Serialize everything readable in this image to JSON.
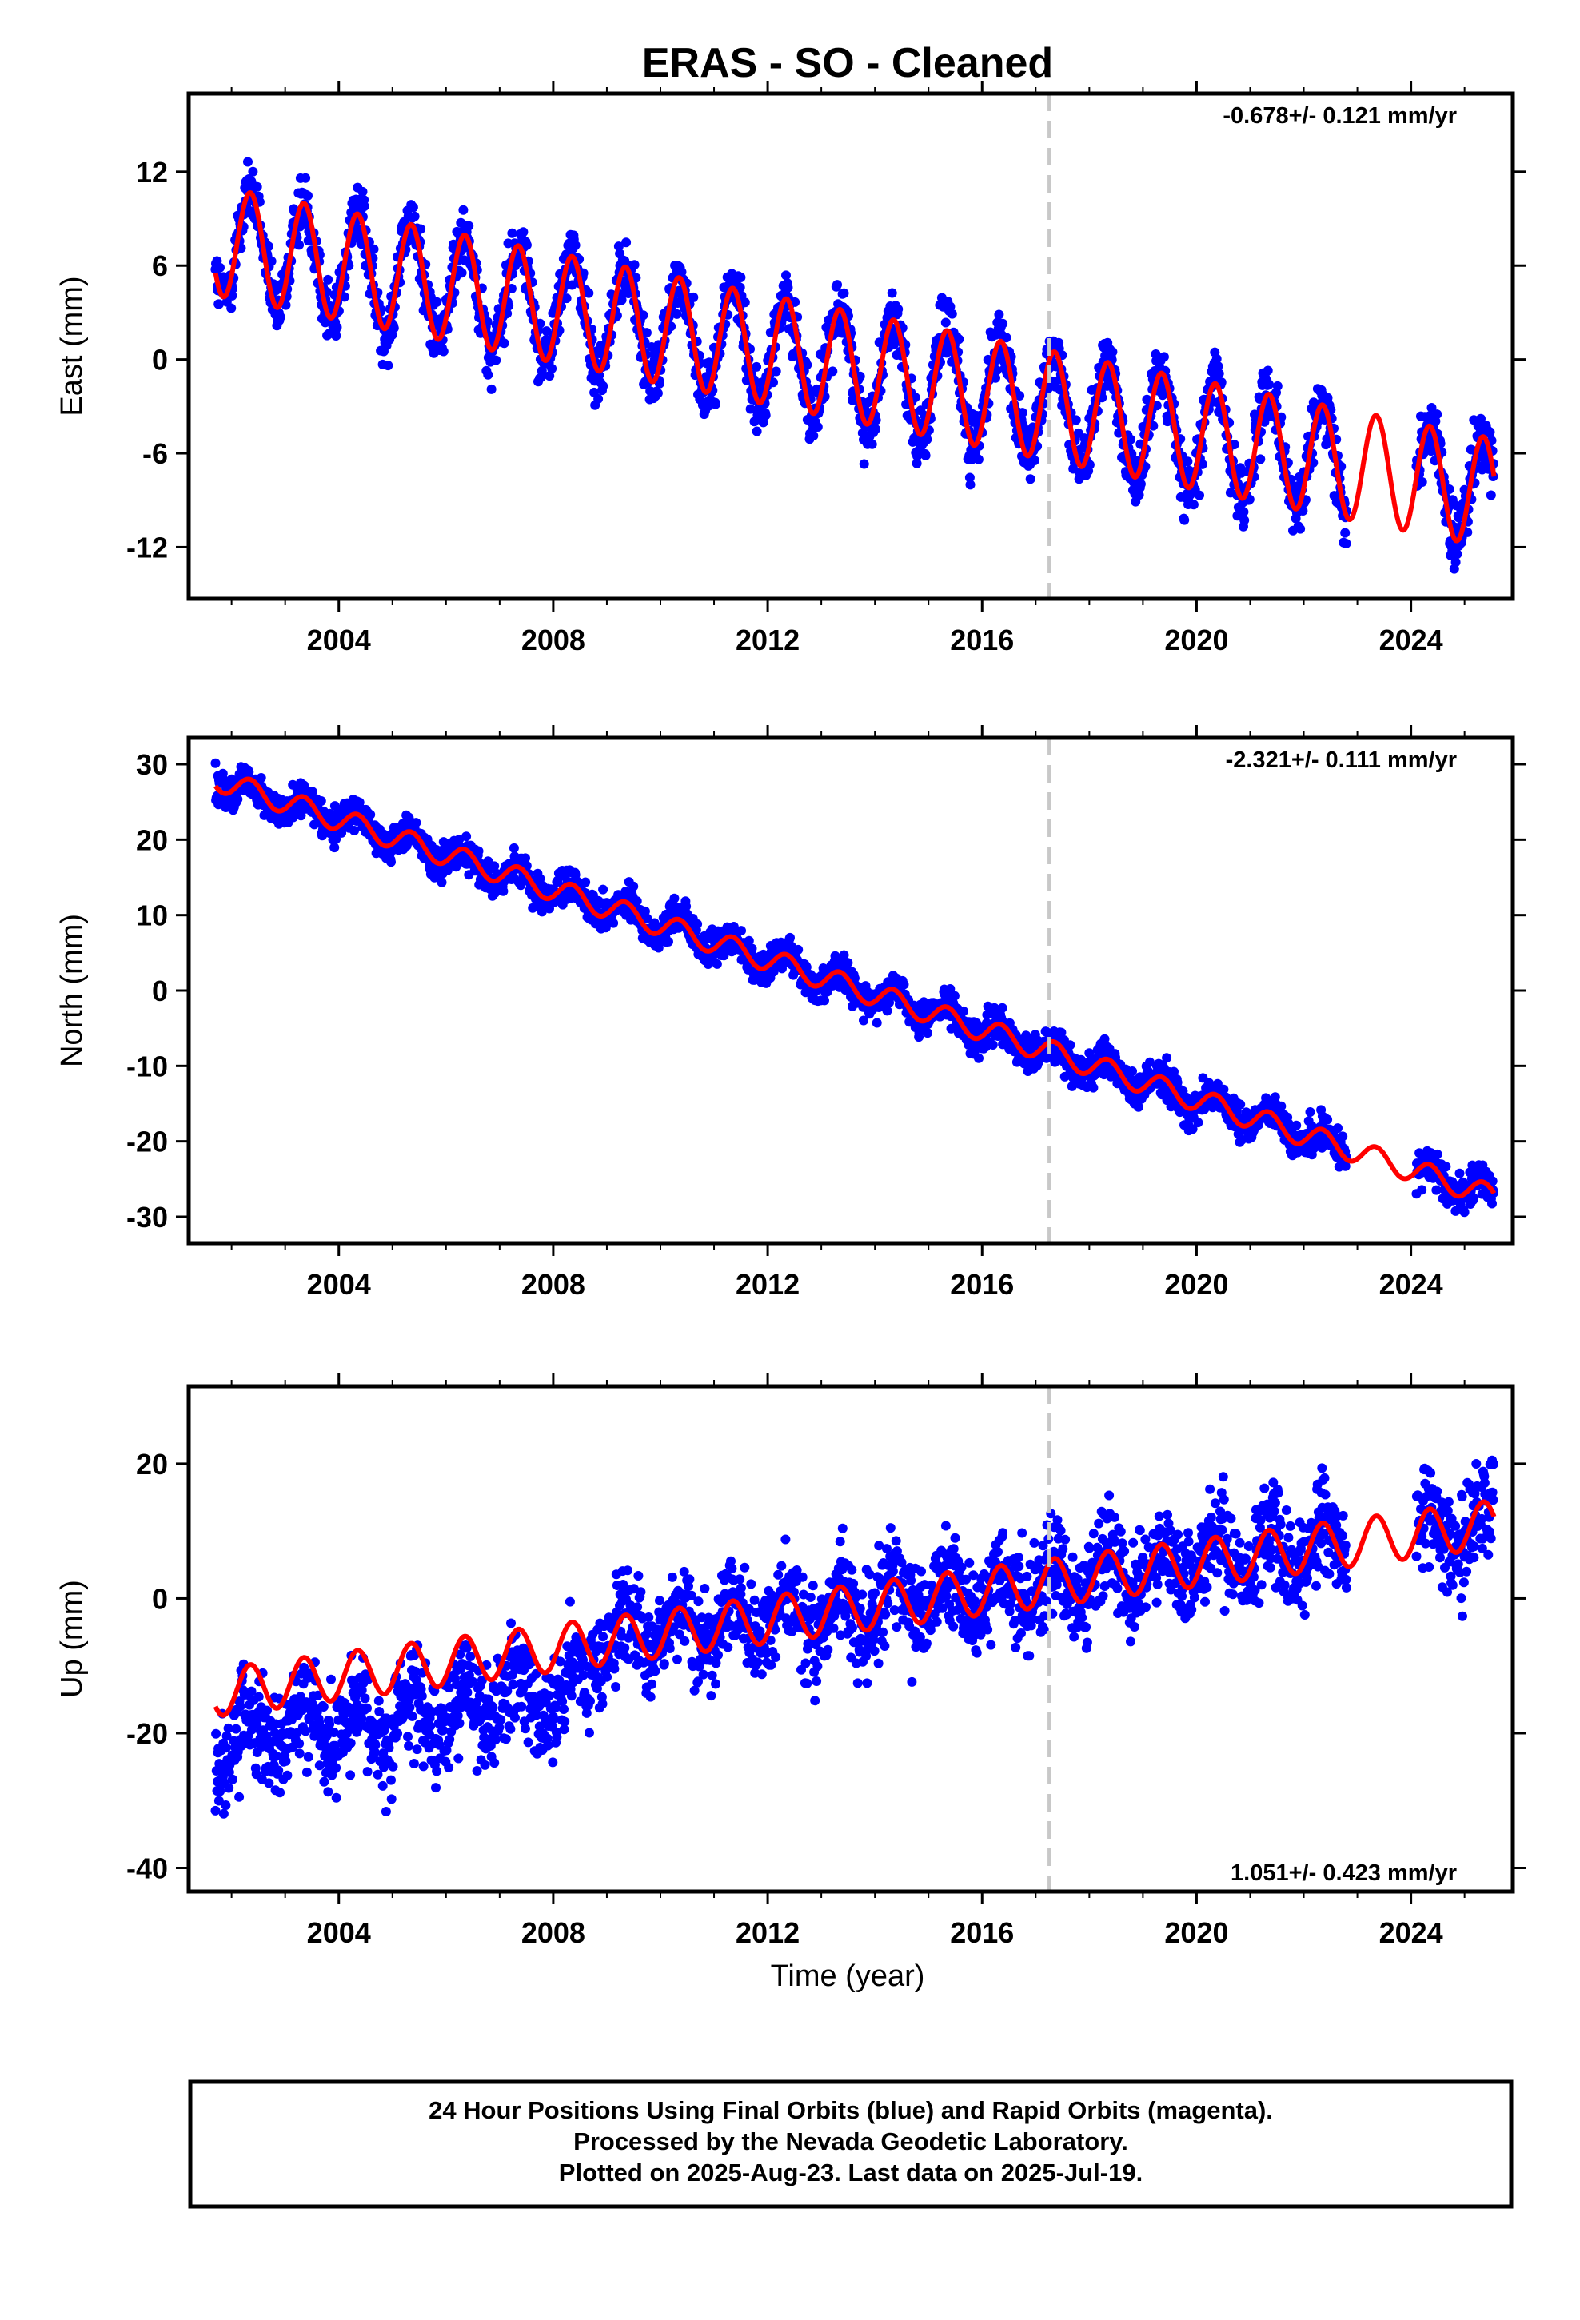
{
  "title": "ERAS  - SO - Cleaned",
  "chart_data": [
    {
      "type": "scatter",
      "ylabel": "East (mm)",
      "xlabel": "",
      "rate_text": "-0.678+/- 0.121 mm/yr",
      "rate_position": "top-right",
      "xlim": [
        2001.2,
        2025.9
      ],
      "ylim": [
        -15.3,
        17.0
      ],
      "xticks": [
        2004,
        2008,
        2012,
        2016,
        2020,
        2024
      ],
      "yticks": [
        12,
        6,
        0,
        -6,
        -12
      ],
      "ytick_labels": [
        "12",
        "6",
        "0",
        "-6",
        "-12"
      ],
      "dashed_x": 2017.25,
      "series": [
        {
          "kind": "points",
          "color": "#0000ff",
          "trend": {
            "x0": 2001.7,
            "y0": 7.6,
            "slope": -0.678
          },
          "annual_amp": 3.5,
          "noise": 1.4,
          "data_start": 2001.7,
          "data_end": 2025.55,
          "gaps": [
            [
              2022.8,
              2024.1
            ]
          ]
        },
        {
          "kind": "model",
          "color": "#ff0000",
          "trend": {
            "x0": 2001.7,
            "y0": 7.6,
            "slope": -0.678
          },
          "annual_amp": 3.5,
          "start": 2001.7,
          "end": 2025.55
        }
      ]
    },
    {
      "type": "scatter",
      "ylabel": "North (mm)",
      "xlabel": "",
      "rate_text": "-2.321+/- 0.111 mm/yr",
      "rate_position": "top-right",
      "xlim": [
        2001.2,
        2025.9
      ],
      "ylim": [
        -33.5,
        33.5
      ],
      "xticks": [
        2004,
        2008,
        2012,
        2016,
        2020,
        2024
      ],
      "yticks": [
        30,
        20,
        10,
        0,
        -10,
        -20,
        -30
      ],
      "ytick_labels": [
        "30",
        "20",
        "10",
        "0",
        "-10",
        "-20",
        "-30"
      ],
      "dashed_x": 2017.25,
      "series": [
        {
          "kind": "points",
          "color": "#0000ff",
          "trend": {
            "x0": 2001.7,
            "y0": 28.0,
            "slope": -2.321
          },
          "annual_amp": 1.5,
          "noise": 1.6,
          "data_start": 2001.7,
          "data_end": 2025.55,
          "gaps": [
            [
              2022.8,
              2024.1
            ]
          ]
        },
        {
          "kind": "model",
          "color": "#ff0000",
          "trend": {
            "x0": 2001.7,
            "y0": 28.0,
            "slope": -2.321
          },
          "annual_amp": 1.5,
          "start": 2001.7,
          "end": 2025.55
        }
      ]
    },
    {
      "type": "scatter",
      "ylabel": "Up (mm)",
      "xlabel": "Time (year)",
      "rate_text": "1.051+/- 0.423 mm/yr",
      "rate_position": "bottom-right",
      "xlim": [
        2001.2,
        2025.9
      ],
      "ylim": [
        -43.5,
        31.5
      ],
      "xticks": [
        2004,
        2008,
        2012,
        2016,
        2020,
        2024
      ],
      "yticks": [
        20,
        0,
        -20,
        -40
      ],
      "ytick_labels": [
        "20",
        "0",
        "-20",
        "-40"
      ],
      "dashed_x": 2017.25,
      "series": [
        {
          "kind": "points",
          "color": "#0000ff",
          "trend": {
            "x0": 2001.7,
            "y0": -14.0,
            "slope": 1.051
          },
          "annual_amp": 3.5,
          "noise": 5.0,
          "data_start": 2001.7,
          "data_end": 2025.55,
          "gaps": [
            [
              2022.8,
              2024.1
            ]
          ],
          "offset_before": {
            "x": 2008.7,
            "value": -9.0
          }
        },
        {
          "kind": "model",
          "color": "#ff0000",
          "trend": {
            "x0": 2001.7,
            "y0": -14.0,
            "slope": 1.051
          },
          "annual_amp": 3.5,
          "start": 2001.7,
          "end": 2025.55
        }
      ]
    }
  ],
  "footer": {
    "line1": "24 Hour Positions Using Final Orbits (blue) and Rapid Orbits (magenta).",
    "line2": "Processed by the Nevada Geodetic Laboratory.",
    "line3": "Plotted on 2025-Aug-23. Last data on 2025-Jul-19."
  }
}
